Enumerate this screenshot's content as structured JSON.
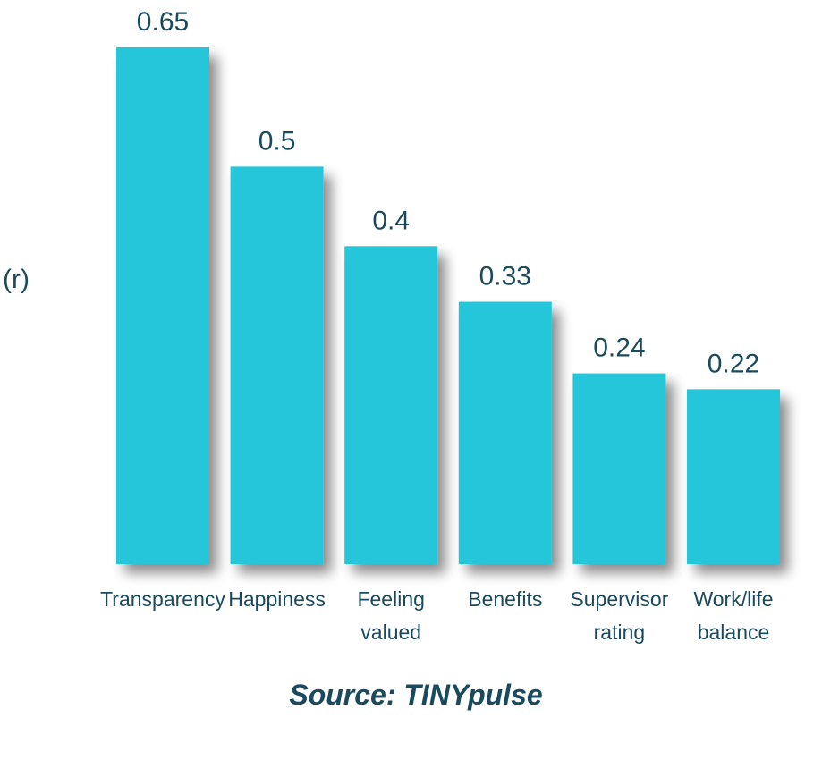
{
  "chart_data": {
    "type": "bar",
    "categories": [
      [
        "Transparency"
      ],
      [
        "Happiness"
      ],
      [
        "Feeling",
        "valued"
      ],
      [
        "Benefits"
      ],
      [
        "Supervisor",
        "rating"
      ],
      [
        "Work/life",
        "balance"
      ]
    ],
    "values": [
      0.65,
      0.5,
      0.4,
      0.33,
      0.24,
      0.22
    ],
    "value_labels": [
      "0.65",
      "0.5",
      "0.4",
      "0.33",
      "0.24",
      "0.22"
    ],
    "ylabel": "(r)",
    "ylim": [
      0,
      0.65
    ],
    "grid": false,
    "source": "Source: TINYpulse",
    "colors": {
      "bar": "#26c6da",
      "text": "#1a4a5e",
      "shadow": "#000000"
    }
  }
}
